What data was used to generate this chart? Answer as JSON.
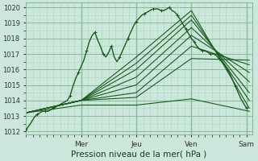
{
  "bg_color": "#cce8dc",
  "grid_major_color": "#88bb99",
  "grid_minor_color": "#aad4be",
  "line_color": "#1a5c1a",
  "ylabel_ticks": [
    1012,
    1013,
    1014,
    1015,
    1016,
    1017,
    1018,
    1019,
    1020
  ],
  "xlabel": "Pression niveau de la mer( hPa )",
  "day_labels": [
    "Mer",
    "Jeu",
    "Ven",
    "Sam"
  ],
  "day_positions": [
    1,
    2,
    3,
    4
  ],
  "ylim": [
    1011.8,
    1020.3
  ],
  "xlim": [
    0,
    4.1
  ],
  "main_line": {
    "x": [
      0.0,
      0.08,
      0.15,
      0.2,
      0.25,
      0.3,
      0.35,
      0.4,
      0.45,
      0.5,
      0.55,
      0.6,
      0.65,
      0.7,
      0.75,
      0.8,
      0.85,
      0.9,
      0.95,
      1.0,
      1.05,
      1.1,
      1.15,
      1.2,
      1.25,
      1.3,
      1.35,
      1.4,
      1.45,
      1.5,
      1.55,
      1.6,
      1.65,
      1.7,
      1.75,
      1.8,
      1.85,
      1.9,
      1.95,
      2.0,
      2.05,
      2.1,
      2.15,
      2.2,
      2.25,
      2.3,
      2.35,
      2.4,
      2.45,
      2.5,
      2.55,
      2.6,
      2.65,
      2.7,
      2.75,
      2.8,
      2.85,
      2.9,
      2.95,
      3.0,
      3.05,
      3.1,
      3.15,
      3.2,
      3.25,
      3.3,
      3.35,
      3.4,
      3.45,
      3.5,
      3.55,
      3.6,
      3.65,
      3.7,
      3.75,
      3.8,
      3.85,
      3.9,
      4.0
    ],
    "y": [
      1012.1,
      1012.5,
      1012.9,
      1013.1,
      1013.2,
      1013.3,
      1013.3,
      1013.3,
      1013.4,
      1013.5,
      1013.6,
      1013.7,
      1013.8,
      1013.9,
      1014.0,
      1014.3,
      1014.9,
      1015.4,
      1015.8,
      1016.2,
      1016.6,
      1017.2,
      1017.8,
      1018.2,
      1018.4,
      1017.9,
      1017.5,
      1017.0,
      1016.8,
      1017.1,
      1017.5,
      1016.8,
      1016.5,
      1016.8,
      1017.2,
      1017.6,
      1018.0,
      1018.4,
      1018.8,
      1019.1,
      1019.3,
      1019.5,
      1019.6,
      1019.7,
      1019.8,
      1019.9,
      1019.9,
      1019.9,
      1019.8,
      1019.8,
      1019.9,
      1020.0,
      1019.8,
      1019.7,
      1019.5,
      1019.2,
      1018.9,
      1018.6,
      1018.3,
      1018.0,
      1017.8,
      1017.5,
      1017.3,
      1017.2,
      1017.2,
      1017.1,
      1017.0,
      1017.0,
      1016.9,
      1016.7,
      1016.5,
      1016.3,
      1016.0,
      1015.7,
      1015.3,
      1014.9,
      1014.5,
      1014.1,
      1013.5
    ]
  },
  "forecast_lines": [
    {
      "x": [
        0.0,
        1.0,
        2.0,
        3.0,
        4.05
      ],
      "y": [
        1013.2,
        1014.0,
        1016.8,
        1019.8,
        1013.5
      ]
    },
    {
      "x": [
        0.0,
        1.0,
        2.0,
        3.0,
        4.05
      ],
      "y": [
        1013.2,
        1014.0,
        1016.4,
        1019.5,
        1014.0
      ]
    },
    {
      "x": [
        0.0,
        1.0,
        2.0,
        3.0,
        4.05
      ],
      "y": [
        1013.2,
        1014.0,
        1016.0,
        1019.2,
        1014.5
      ]
    },
    {
      "x": [
        0.0,
        1.0,
        2.0,
        3.0,
        4.05
      ],
      "y": [
        1013.2,
        1014.0,
        1015.5,
        1018.7,
        1015.2
      ]
    },
    {
      "x": [
        0.0,
        1.0,
        2.0,
        3.0,
        4.05
      ],
      "y": [
        1013.2,
        1014.0,
        1015.0,
        1018.2,
        1015.8
      ]
    },
    {
      "x": [
        0.0,
        1.0,
        2.0,
        3.0,
        4.05
      ],
      "y": [
        1013.2,
        1014.0,
        1014.5,
        1017.5,
        1016.3
      ]
    },
    {
      "x": [
        0.0,
        1.0,
        2.0,
        3.0,
        4.05
      ],
      "y": [
        1013.2,
        1014.0,
        1014.2,
        1016.7,
        1016.6
      ]
    },
    {
      "x": [
        0.0,
        1.0,
        2.0,
        3.0,
        4.05
      ],
      "y": [
        1013.2,
        1013.7,
        1013.7,
        1014.1,
        1013.3
      ]
    }
  ]
}
